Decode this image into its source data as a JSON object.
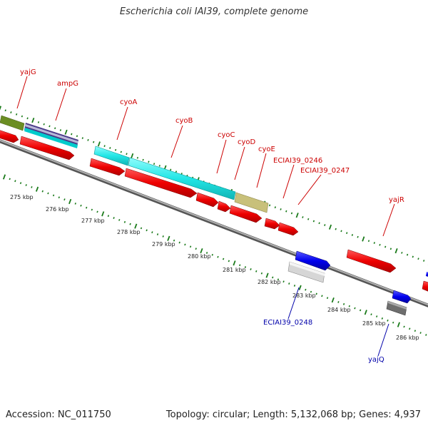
{
  "title": "Escherichia coli IAI39, complete genome",
  "footer": {
    "accession": "Accession: NC_011750",
    "summary": "Topology: circular; Length: 5,132,068 bp; Genes: 4,937"
  },
  "colors": {
    "top_strand_label": "#cc0000",
    "bottom_strand_label": "#0000aa",
    "backbone": "#888888",
    "tick_mark": "#1a7a1a"
  },
  "gene_labels": {
    "yajG": "yajG",
    "ampG": "ampG",
    "cyoA": "cyoA",
    "cyoB": "cyoB",
    "cyoC": "cyoC",
    "cyoD": "cyoD",
    "cyoE": "cyoE",
    "ECIAI39_0246": "ECIAI39_0246",
    "ECIAI39_0247": "ECIAI39_0247",
    "yajR": "yajR",
    "ECIAI39_0248": "ECIAI39_0248",
    "yajQ": "yajQ"
  },
  "scale_labels": [
    "275 kbp",
    "276 kbp",
    "277 kbp",
    "278 kbp",
    "279 kbp",
    "280 kbp",
    "281 kbp",
    "282 kbp",
    "283 kbp",
    "284 kbp",
    "285 kbp",
    "286 kbp"
  ]
}
